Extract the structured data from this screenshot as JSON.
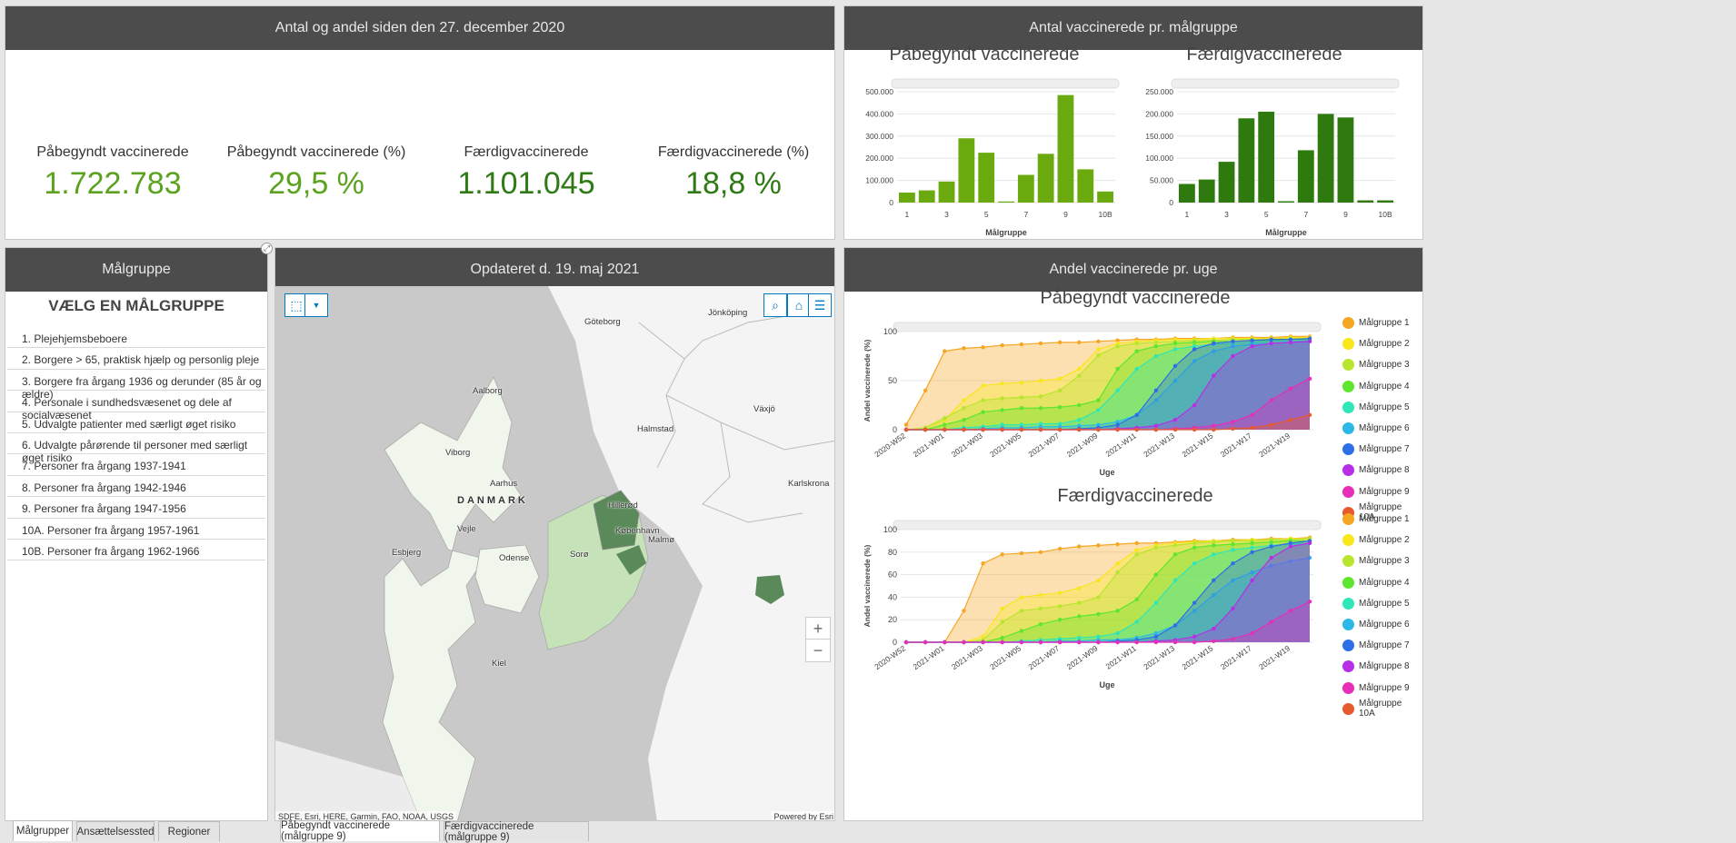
{
  "kpi_panel": {
    "title": "Antal og andel siden den 27. december 2020",
    "items": [
      {
        "label": "Påbegyndt vaccinerede",
        "value": "1.722.783",
        "color": "#5ba21e"
      },
      {
        "label": "Påbegyndt vaccinerede (%)",
        "value": "29,5 %",
        "color": "#5ba21e"
      },
      {
        "label": "Færdigvaccinerede",
        "value": "1.101.045",
        "color": "#2e7a15"
      },
      {
        "label": "Færdigvaccinerede (%)",
        "value": "18,8 %",
        "color": "#2e7a15"
      }
    ]
  },
  "group_panel": {
    "title": "Antal vaccinerede pr. målgruppe"
  },
  "map_panel": {
    "title": "Opdateret d. 19. maj 2021",
    "attribution": "SDFE, Esri, HERE, Garmin, FAO, NOAA, USGS",
    "powered": "Powered by Esri",
    "labels": [
      "Göteborg",
      "Jönköping",
      "Aalborg",
      "Halmstad",
      "Växjö",
      "Viborg",
      "Aarhus",
      "DANMARK",
      "Hillerød",
      "København",
      "Malmø",
      "Karlskrona",
      "Vejle",
      "Esbjerg",
      "Odense",
      "Sorø",
      "Kiel"
    ],
    "zoom_in": "+",
    "zoom_out": "−"
  },
  "filter_panel": {
    "title": "Målgruppe",
    "heading": "VÆLG EN MÅLGRUPPE",
    "items": [
      "1. Plejehjemsbeboere",
      "2. Borgere > 65, praktisk hjælp og personlig pleje",
      "3. Borgere fra årgang 1936 og derunder (85 år og ældre)",
      "4. Personale i sundhedsvæsenet og dele af socialvæsenet",
      "5. Udvalgte patienter med særligt øget risiko",
      "6. Udvalgte pårørende til personer med særligt øget risiko",
      "7. Personer fra årgang 1937-1941",
      "8. Personer fra årgang 1942-1946",
      "9. Personer fra årgang 1947-1956",
      "10A. Personer fra årgang 1957-1961",
      "10B. Personer fra årgang 1962-1966"
    ]
  },
  "weekly_panel": {
    "title": "Andel vaccinerede pr. uge"
  },
  "tabs": {
    "left": [
      "Målgrupper",
      "Ansættelsessted",
      "Regioner"
    ],
    "map": [
      "Påbegyndt vaccinerede (målgruppe 9)",
      "Færdigvaccinerede (målgruppe 9)"
    ]
  },
  "legend": [
    "Målgruppe 1",
    "Målgruppe 2",
    "Målgruppe 3",
    "Målgruppe 4",
    "Målgruppe 5",
    "Målgruppe 6",
    "Målgruppe 7",
    "Målgruppe 8",
    "Målgruppe 9",
    "Målgruppe 10A"
  ],
  "chart_data": [
    {
      "type": "bar",
      "title": "Påbegyndt vaccinerede",
      "xlabel": "Målgruppe",
      "categories": [
        "1",
        "2",
        "3",
        "4",
        "5",
        "6",
        "7",
        "8",
        "9",
        "10A",
        "10B"
      ],
      "xtick_labels": [
        "1",
        "3",
        "5",
        "7",
        "9",
        "10B"
      ],
      "values": [
        45000,
        55000,
        95000,
        290000,
        225000,
        5000,
        125000,
        220000,
        485000,
        150000,
        50000
      ],
      "ylim": [
        0,
        500000
      ],
      "yticks": [
        "0",
        "100.000",
        "200.000",
        "300.000",
        "400.000",
        "500.000"
      ],
      "color": "#6aaa0e"
    },
    {
      "type": "bar",
      "title": "Færdigvaccinerede",
      "xlabel": "Målgruppe",
      "categories": [
        "1",
        "2",
        "3",
        "4",
        "5",
        "6",
        "7",
        "8",
        "9",
        "10A",
        "10B"
      ],
      "xtick_labels": [
        "1",
        "3",
        "5",
        "7",
        "9",
        "10B"
      ],
      "values": [
        42000,
        52000,
        92000,
        190000,
        205000,
        3000,
        118000,
        200000,
        192000,
        5000,
        5000
      ],
      "ylim": [
        0,
        250000
      ],
      "yticks": [
        "0",
        "50.000",
        "100.000",
        "150.000",
        "200.000",
        "250.000"
      ],
      "color": "#2e7a0e"
    },
    {
      "type": "area",
      "title": "Påbegyndt vaccinerede",
      "xlabel": "Uge",
      "ylabel": "Andel vaccinerede (%)",
      "ylim": [
        0,
        100
      ],
      "yticks": [
        "0",
        "50",
        "100"
      ],
      "x": [
        "2020-W52",
        "2020-W53",
        "2021-W01",
        "2021-W02",
        "2021-W03",
        "2021-W04",
        "2021-W05",
        "2021-W06",
        "2021-W07",
        "2021-W08",
        "2021-W09",
        "2021-W10",
        "2021-W11",
        "2021-W12",
        "2021-W13",
        "2021-W14",
        "2021-W15",
        "2021-W16",
        "2021-W17",
        "2021-W18",
        "2021-W19",
        "2021-W20"
      ],
      "xtick_labels": [
        "2020-W52",
        "2021-W01",
        "2021-W03",
        "2021-W05",
        "2021-W07",
        "2021-W09",
        "2021-W11",
        "2021-W13",
        "2021-W15",
        "2021-W17",
        "2021-W19"
      ],
      "series": [
        {
          "name": "Målgruppe 1",
          "color": "#f5a623",
          "values": [
            5,
            40,
            80,
            83,
            84,
            86,
            87,
            88,
            89,
            89,
            90,
            91,
            92,
            92,
            93,
            93,
            93,
            94,
            94,
            94,
            95,
            95
          ]
        },
        {
          "name": "Målgruppe 2",
          "color": "#f8e71c",
          "values": [
            0,
            2,
            10,
            30,
            45,
            47,
            48,
            50,
            52,
            62,
            82,
            88,
            90,
            91,
            92,
            92,
            93,
            93,
            93,
            93,
            94,
            94
          ]
        },
        {
          "name": "Målgruppe 3",
          "color": "#b8e62e",
          "values": [
            0,
            2,
            12,
            22,
            30,
            32,
            33,
            34,
            40,
            55,
            76,
            85,
            88,
            89,
            90,
            91,
            91,
            92,
            92,
            92,
            93,
            93
          ]
        },
        {
          "name": "Målgruppe 4",
          "color": "#5ee62e",
          "values": [
            0,
            0,
            5,
            10,
            18,
            20,
            22,
            22,
            23,
            25,
            30,
            62,
            80,
            85,
            88,
            89,
            90,
            90,
            91,
            91,
            92,
            92
          ]
        },
        {
          "name": "Målgruppe 5",
          "color": "#2ee6b8",
          "values": [
            0,
            0,
            0,
            2,
            3,
            5,
            5,
            6,
            6,
            10,
            20,
            40,
            62,
            75,
            82,
            85,
            87,
            88,
            89,
            90,
            90,
            91
          ]
        },
        {
          "name": "Målgruppe 6",
          "color": "#2eb8e6",
          "values": [
            0,
            0,
            0,
            0,
            1,
            2,
            2,
            3,
            3,
            4,
            5,
            8,
            15,
            30,
            50,
            70,
            80,
            85,
            87,
            88,
            89,
            90
          ]
        },
        {
          "name": "Målgruppe 7",
          "color": "#2e6ee6",
          "values": [
            0,
            0,
            0,
            0,
            0,
            0,
            0,
            0,
            0,
            1,
            2,
            5,
            15,
            40,
            65,
            82,
            88,
            90,
            91,
            92,
            92,
            93
          ]
        },
        {
          "name": "Målgruppe 8",
          "color": "#b82ee6",
          "values": [
            0,
            0,
            0,
            0,
            0,
            0,
            0,
            0,
            0,
            0,
            0,
            1,
            2,
            4,
            10,
            25,
            55,
            75,
            85,
            88,
            89,
            90
          ]
        },
        {
          "name": "Målgruppe 9",
          "color": "#e62eb8",
          "values": [
            0,
            0,
            0,
            0,
            0,
            0,
            0,
            0,
            0,
            0,
            0,
            0,
            0,
            0,
            1,
            2,
            4,
            8,
            15,
            30,
            42,
            52
          ]
        },
        {
          "name": "Målgruppe 10A",
          "color": "#e65a2e",
          "values": [
            0,
            0,
            0,
            0,
            0,
            0,
            0,
            0,
            0,
            0,
            0,
            0,
            0,
            0,
            0,
            0,
            0,
            1,
            2,
            5,
            10,
            15
          ]
        }
      ]
    },
    {
      "type": "area",
      "title": "Færdigvaccinerede",
      "xlabel": "Uge",
      "ylabel": "Andel vaccinerede (%)",
      "ylim": [
        0,
        100
      ],
      "yticks": [
        "0",
        "20",
        "40",
        "60",
        "80",
        "100"
      ],
      "x": [
        "2020-W52",
        "2020-W53",
        "2021-W01",
        "2021-W02",
        "2021-W03",
        "2021-W04",
        "2021-W05",
        "2021-W06",
        "2021-W07",
        "2021-W08",
        "2021-W09",
        "2021-W10",
        "2021-W11",
        "2021-W12",
        "2021-W13",
        "2021-W14",
        "2021-W15",
        "2021-W16",
        "2021-W17",
        "2021-W18",
        "2021-W19",
        "2021-W20"
      ],
      "xtick_labels": [
        "2020-W52",
        "2021-W01",
        "2021-W03",
        "2021-W05",
        "2021-W07",
        "2021-W09",
        "2021-W11",
        "2021-W13",
        "2021-W15",
        "2021-W17",
        "2021-W19"
      ],
      "series": [
        {
          "name": "Målgruppe 1",
          "color": "#f5a623",
          "values": [
            0,
            0,
            0,
            28,
            70,
            78,
            79,
            80,
            83,
            85,
            86,
            87,
            88,
            88,
            89,
            90,
            90,
            91,
            91,
            92,
            92,
            93
          ]
        },
        {
          "name": "Målgruppe 2",
          "color": "#f8e71c",
          "values": [
            0,
            0,
            0,
            0,
            5,
            30,
            40,
            42,
            44,
            48,
            55,
            70,
            82,
            86,
            88,
            89,
            90,
            90,
            91,
            91,
            92,
            92
          ]
        },
        {
          "name": "Målgruppe 3",
          "color": "#b8e62e",
          "values": [
            0,
            0,
            0,
            0,
            2,
            18,
            28,
            30,
            32,
            35,
            40,
            62,
            78,
            84,
            86,
            88,
            89,
            90,
            90,
            91,
            91,
            92
          ]
        },
        {
          "name": "Målgruppe 4",
          "color": "#5ee62e",
          "values": [
            0,
            0,
            0,
            0,
            0,
            4,
            10,
            16,
            20,
            23,
            25,
            28,
            38,
            60,
            78,
            84,
            86,
            87,
            88,
            89,
            90,
            90
          ]
        },
        {
          "name": "Målgruppe 5",
          "color": "#2ee6b8",
          "values": [
            0,
            0,
            0,
            0,
            0,
            0,
            1,
            2,
            3,
            4,
            5,
            8,
            18,
            35,
            55,
            70,
            78,
            82,
            84,
            86,
            87,
            88
          ]
        },
        {
          "name": "Målgruppe 6",
          "color": "#2eb8e6",
          "values": [
            0,
            0,
            0,
            0,
            0,
            0,
            0,
            0,
            1,
            1,
            2,
            2,
            4,
            8,
            15,
            28,
            42,
            55,
            62,
            68,
            72,
            75
          ]
        },
        {
          "name": "Målgruppe 7",
          "color": "#2e6ee6",
          "values": [
            0,
            0,
            0,
            0,
            0,
            0,
            0,
            0,
            0,
            0,
            0,
            1,
            2,
            5,
            15,
            35,
            55,
            70,
            80,
            85,
            88,
            90
          ]
        },
        {
          "name": "Målgruppe 8",
          "color": "#b82ee6",
          "values": [
            0,
            0,
            0,
            0,
            0,
            0,
            0,
            0,
            0,
            0,
            0,
            0,
            0,
            1,
            2,
            5,
            12,
            30,
            55,
            75,
            85,
            88
          ]
        },
        {
          "name": "Målgruppe 9",
          "color": "#e62eb8",
          "values": [
            0,
            0,
            0,
            0,
            0,
            0,
            0,
            0,
            0,
            0,
            0,
            0,
            0,
            0,
            0,
            0,
            1,
            3,
            8,
            18,
            28,
            36
          ]
        }
      ]
    }
  ]
}
